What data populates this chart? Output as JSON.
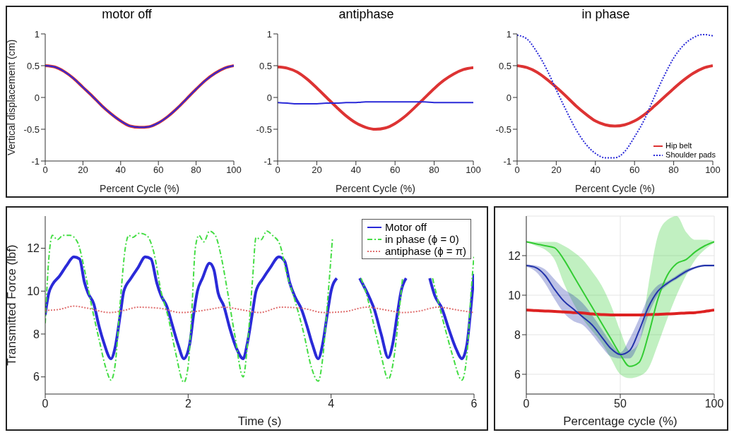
{
  "chart_data": [
    {
      "type": "line",
      "title": "motor off",
      "xlabel": "Percent Cycle (%)",
      "ylabel": "Vertical displacement (cm)",
      "xlim": [
        0,
        100
      ],
      "xticks": [
        0,
        20,
        40,
        60,
        80,
        100
      ],
      "ylim": [
        -1,
        1
      ],
      "yticks": [
        -1,
        -0.5,
        0,
        0.5,
        1
      ],
      "x": [
        0,
        5,
        10,
        15,
        20,
        25,
        30,
        35,
        40,
        45,
        50,
        55,
        60,
        65,
        70,
        75,
        80,
        85,
        90,
        95,
        100
      ],
      "series": [
        {
          "color": "#dd3333",
          "line_style": "solid",
          "values": [
            0.5,
            0.48,
            0.41,
            0.3,
            0.16,
            0.02,
            -0.13,
            -0.26,
            -0.37,
            -0.45,
            -0.47,
            -0.46,
            -0.4,
            -0.3,
            -0.17,
            -0.02,
            0.13,
            0.27,
            0.38,
            0.46,
            0.5
          ]
        },
        {
          "color": "#2a2ad8",
          "line_style": "solid",
          "values": [
            0.5,
            0.48,
            0.41,
            0.3,
            0.16,
            0.02,
            -0.13,
            -0.26,
            -0.37,
            -0.45,
            -0.47,
            -0.46,
            -0.4,
            -0.3,
            -0.17,
            -0.02,
            0.13,
            0.27,
            0.38,
            0.46,
            0.5
          ]
        }
      ]
    },
    {
      "type": "line",
      "title": "antiphase",
      "xlabel": "Percent Cycle (%)",
      "xlim": [
        0,
        100
      ],
      "xticks": [
        0,
        20,
        40,
        60,
        80,
        100
      ],
      "ylim": [
        -1,
        1
      ],
      "yticks": [
        -1,
        -0.5,
        0,
        0.5,
        1
      ],
      "x": [
        0,
        5,
        10,
        15,
        20,
        25,
        30,
        35,
        40,
        45,
        50,
        55,
        60,
        65,
        70,
        75,
        80,
        85,
        90,
        95,
        100
      ],
      "series": [
        {
          "color": "#dd3333",
          "line_style": "solid",
          "values": [
            0.48,
            0.46,
            0.4,
            0.29,
            0.15,
            0.0,
            -0.15,
            -0.29,
            -0.4,
            -0.47,
            -0.5,
            -0.48,
            -0.41,
            -0.3,
            -0.16,
            -0.01,
            0.14,
            0.27,
            0.37,
            0.44,
            0.47
          ]
        },
        {
          "color": "#2a2ad8",
          "line_style": "solid",
          "values": [
            -0.08,
            -0.09,
            -0.1,
            -0.1,
            -0.1,
            -0.09,
            -0.09,
            -0.08,
            -0.08,
            -0.07,
            -0.07,
            -0.07,
            -0.07,
            -0.07,
            -0.07,
            -0.07,
            -0.08,
            -0.08,
            -0.08,
            -0.08,
            -0.08
          ]
        }
      ]
    },
    {
      "type": "line",
      "title": "in phase",
      "xlabel": "Percent Cycle (%)",
      "xlim": [
        0,
        100
      ],
      "xticks": [
        0,
        20,
        40,
        60,
        80,
        100
      ],
      "ylim": [
        -1,
        1
      ],
      "yticks": [
        -1,
        -0.5,
        0,
        0.5,
        1
      ],
      "legend": "bottom right",
      "x": [
        0,
        5,
        10,
        15,
        20,
        25,
        30,
        35,
        40,
        45,
        50,
        55,
        60,
        65,
        70,
        75,
        80,
        85,
        90,
        95,
        100
      ],
      "series": [
        {
          "name": "Hip belt",
          "color": "#dd3333",
          "line_style": "solid",
          "values": [
            0.5,
            0.47,
            0.4,
            0.29,
            0.16,
            0.02,
            -0.13,
            -0.26,
            -0.37,
            -0.43,
            -0.45,
            -0.43,
            -0.37,
            -0.27,
            -0.14,
            0.0,
            0.14,
            0.27,
            0.38,
            0.46,
            0.5
          ]
        },
        {
          "name": "Shoulder pads",
          "color": "#2a2ad8",
          "line_style": "dotted",
          "values": [
            0.98,
            0.92,
            0.72,
            0.45,
            0.12,
            -0.2,
            -0.5,
            -0.73,
            -0.88,
            -0.95,
            -0.95,
            -0.85,
            -0.62,
            -0.35,
            0.0,
            0.33,
            0.62,
            0.82,
            0.94,
            0.99,
            0.97
          ]
        }
      ]
    },
    {
      "type": "line",
      "xlabel": "Time (s)",
      "ylabel": "Transmitted Force (lbf)",
      "xlim": [
        0,
        6
      ],
      "xticks": [
        0,
        2,
        4,
        6
      ],
      "ylim": [
        5.2,
        13.5
      ],
      "yticks": [
        6,
        8,
        10,
        12
      ],
      "legend": "top right",
      "series": [
        {
          "name": "Motor off",
          "color": "#2a2ad8",
          "line_style": "solid",
          "x": [
            0,
            0.05,
            0.1,
            0.2,
            0.3,
            0.4,
            0.48,
            0.55,
            0.6,
            0.68,
            0.75,
            0.82,
            0.92,
            0.98,
            1.05,
            1.1,
            1.2,
            1.3,
            1.4,
            1.48,
            1.56,
            1.62,
            1.7,
            1.78,
            1.86,
            1.94,
            2.02,
            2.08,
            2.13,
            2.2,
            2.3,
            2.36,
            2.42,
            2.5,
            2.58,
            2.68,
            2.77,
            2.83,
            2.9,
            2.95,
            3.05,
            3.15,
            3.27,
            3.35,
            3.42,
            3.5,
            3.58,
            3.66,
            3.74,
            3.82,
            3.88,
            3.95,
            4.0,
            4.08,
            4.2,
            4.4,
            4.55,
            4.6,
            4.7,
            4.8,
            4.86,
            4.93,
            4.98,
            5.05,
            5.2,
            5.38,
            5.45,
            5.55,
            5.65,
            5.75,
            5.83,
            5.9,
            5.95,
            6.0
          ],
          "values": [
            8.9,
            9.9,
            10.3,
            10.7,
            11.2,
            11.6,
            11.5,
            10.4,
            9.9,
            9.4,
            8.4,
            7.6,
            6.85,
            7.4,
            8.9,
            10.0,
            10.6,
            11.1,
            11.6,
            11.5,
            10.4,
            9.8,
            9.3,
            8.4,
            7.5,
            6.85,
            7.5,
            9.0,
            10.0,
            10.6,
            11.3,
            11.0,
            9.9,
            9.3,
            8.3,
            7.3,
            6.85,
            7.6,
            9.0,
            10.0,
            10.6,
            11.1,
            11.6,
            11.4,
            10.4,
            9.7,
            9.2,
            8.4,
            7.5,
            6.85,
            7.5,
            9.0,
            10.0,
            10.6,
            null,
            10.6,
            9.6,
            9.2,
            8.0,
            6.9,
            7.5,
            9.0,
            10.0,
            10.6,
            null,
            10.6,
            9.8,
            9.2,
            8.2,
            7.3,
            6.85,
            7.5,
            9.0,
            10.8
          ]
        },
        {
          "name": "in phase (ϕ = 0)",
          "color": "#44dd44",
          "line_style": "dashed",
          "x": [
            0,
            0.05,
            0.1,
            0.17,
            0.25,
            0.35,
            0.45,
            0.55,
            0.65,
            0.75,
            0.85,
            0.92,
            0.98,
            1.05,
            1.12,
            1.17,
            1.22,
            1.32,
            1.42,
            1.52,
            1.62,
            1.72,
            1.82,
            1.94,
            2.0,
            2.05,
            2.1,
            2.15,
            2.22,
            2.3,
            2.38,
            2.45,
            2.55,
            2.65,
            2.77,
            2.83,
            2.9,
            2.95,
            3.02,
            3.1,
            3.18,
            3.28,
            3.38,
            3.5,
            3.62,
            3.72,
            3.82,
            3.88,
            3.95,
            4.02,
            4.25,
            4.42,
            4.5,
            4.6,
            4.7,
            4.8,
            4.88,
            4.95,
            5.0,
            5.2,
            5.42,
            5.5,
            5.6,
            5.7,
            5.83,
            5.9,
            5.96,
            6.0
          ],
          "values": [
            8.5,
            11.5,
            12.6,
            12.4,
            12.6,
            12.6,
            12.3,
            11.0,
            9.3,
            7.8,
            6.4,
            5.85,
            6.6,
            9.5,
            12.0,
            12.6,
            12.5,
            12.7,
            12.6,
            11.8,
            10.0,
            8.8,
            7.2,
            5.75,
            6.5,
            9.0,
            12.0,
            12.6,
            12.3,
            12.8,
            12.6,
            11.8,
            10.0,
            8.0,
            6.0,
            7.5,
            10.5,
            12.5,
            12.4,
            12.8,
            12.6,
            12.2,
            10.8,
            9.5,
            8.0,
            6.5,
            5.8,
            6.8,
            9.5,
            12.5,
            null,
            10.6,
            9.8,
            8.4,
            7.0,
            5.9,
            6.9,
            9.0,
            10.6,
            null,
            10.6,
            9.5,
            8.2,
            7.0,
            5.85,
            7.0,
            10.0,
            11.7
          ]
        },
        {
          "name": "antiphase (ϕ = π)",
          "color": "#e07070",
          "line_style": "dotted",
          "x": [
            0,
            0.2,
            0.4,
            0.6,
            0.9,
            1.1,
            1.3,
            1.6,
            1.9,
            2.1,
            2.3,
            2.5,
            2.8,
            3.0,
            3.3,
            3.6,
            3.9,
            4.2,
            4.5,
            4.8,
            5.0,
            5.2,
            5.5,
            5.8,
            6.0
          ],
          "values": [
            9.1,
            9.15,
            9.3,
            9.2,
            9.0,
            9.1,
            9.25,
            9.2,
            9.0,
            9.05,
            9.15,
            9.25,
            9.1,
            9.0,
            9.25,
            9.2,
            9.0,
            9.05,
            9.25,
            9.1,
            9.0,
            9.05,
            9.25,
            9.1,
            9.0
          ]
        }
      ]
    },
    {
      "type": "line",
      "xlabel": "Percentage cycle (%)",
      "xlim": [
        0,
        100
      ],
      "xticks": [
        0,
        50,
        100
      ],
      "ylim": [
        5,
        14
      ],
      "yticks": [
        6,
        8,
        10,
        12
      ],
      "grid": true,
      "x": [
        0,
        5,
        10,
        15,
        20,
        25,
        30,
        35,
        40,
        45,
        50,
        55,
        60,
        65,
        70,
        75,
        80,
        85,
        90,
        95,
        100
      ],
      "series": [
        {
          "color": "#dd2222",
          "line_style": "solid",
          "values": [
            9.25,
            9.22,
            9.2,
            9.18,
            9.15,
            9.12,
            9.1,
            9.05,
            9.02,
            9.0,
            9.0,
            9.0,
            9.0,
            9.02,
            9.03,
            9.05,
            9.07,
            9.1,
            9.12,
            9.18,
            9.25
          ]
        },
        {
          "color": "#33cc33",
          "line_style": "solid",
          "values": [
            12.7,
            12.6,
            12.5,
            12.4,
            11.8,
            11.0,
            10.2,
            9.4,
            8.6,
            7.8,
            7.0,
            6.4,
            6.6,
            8.0,
            9.8,
            11.0,
            11.6,
            11.8,
            12.2,
            12.5,
            12.7
          ],
          "lower": [
            12.7,
            12.5,
            12.3,
            11.8,
            10.6,
            9.6,
            8.8,
            8.2,
            7.6,
            6.8,
            6.0,
            5.8,
            5.9,
            6.3,
            7.5,
            8.8,
            10.0,
            11.0,
            11.8,
            12.3,
            12.65
          ],
          "upper": [
            12.75,
            12.7,
            12.7,
            12.7,
            12.5,
            12.2,
            11.8,
            11.2,
            10.5,
            9.5,
            8.2,
            7.2,
            7.6,
            10.5,
            13.0,
            13.8,
            14.0,
            13.2,
            12.8,
            12.8,
            12.75
          ]
        },
        {
          "color": "#2233aa",
          "line_style": "solid",
          "values": [
            11.5,
            11.4,
            11.0,
            10.3,
            9.7,
            9.3,
            8.9,
            8.5,
            7.9,
            7.3,
            7.0,
            7.2,
            8.2,
            9.4,
            10.2,
            10.6,
            10.9,
            11.2,
            11.4,
            11.5,
            11.5
          ],
          "lower": [
            11.45,
            11.2,
            10.6,
            9.8,
            9.1,
            8.7,
            8.5,
            8.0,
            7.4,
            6.9,
            6.8,
            6.8,
            7.6,
            9.0,
            10.0,
            10.5,
            10.8,
            11.1,
            11.35,
            11.45,
            11.45
          ],
          "upper": [
            11.55,
            11.5,
            11.3,
            10.8,
            10.3,
            10.0,
            9.6,
            9.0,
            8.3,
            7.6,
            7.1,
            7.8,
            8.8,
            9.9,
            10.5,
            10.7,
            11.0,
            11.3,
            11.45,
            11.55,
            11.55
          ]
        }
      ]
    }
  ]
}
